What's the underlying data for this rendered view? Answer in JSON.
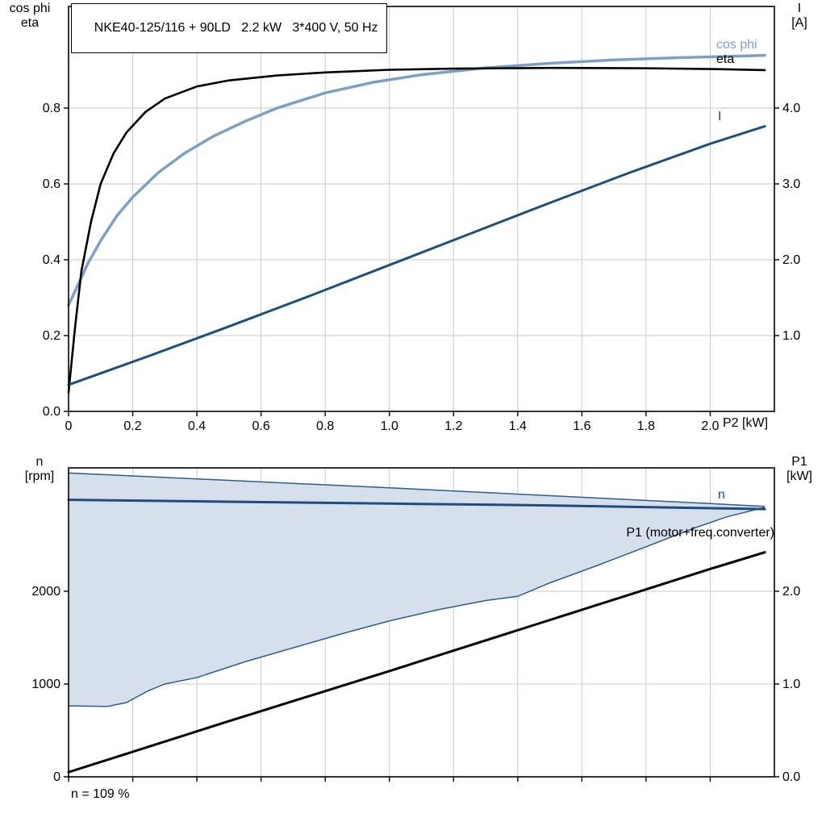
{
  "page": {
    "background": "#ffffff"
  },
  "colors": {
    "cos_phi": "#7d9ec6",
    "eta": "#000000",
    "current": "#1d4e7e",
    "speed": "#1d4e7e",
    "band_fill": "#d6e0ec",
    "band_edge": "#2e5d8c",
    "p1": "#000000",
    "grid": "#c9c9c9",
    "frame": "#000000"
  },
  "chart_data": [
    {
      "type": "line",
      "title": "NKE40-125/116 + 90LD   2.2 kW   3*400 V, 50 Hz",
      "xlabel": "P2 [kW]",
      "ylabel_left_lines": [
        "cos phi",
        "eta"
      ],
      "ylabel_right_lines": [
        "I",
        "[A]"
      ],
      "xlim": [
        0,
        2.2
      ],
      "ylim_left": [
        0,
        1.068
      ],
      "ylim_right": [
        0,
        5.34
      ],
      "grid": true,
      "legend_position": "curve-end-labels",
      "x_ticks": [
        0,
        0.2,
        0.4,
        0.6,
        0.8,
        1.0,
        1.2,
        1.4,
        1.6,
        1.8,
        2.0
      ],
      "x_tick_labels": [
        "0",
        "0.2",
        "0.4",
        "0.6",
        "0.8",
        "1.0",
        "1.2",
        "1.4",
        "1.6",
        "1.8",
        "2.0"
      ],
      "y_ticks_left": [
        0,
        0.2,
        0.4,
        0.6,
        0.8
      ],
      "y_tick_labels_left": [
        "0.0",
        "0.2",
        "0.4",
        "0.6",
        "0.8"
      ],
      "y_ticks_right": [
        1.0,
        2.0,
        3.0,
        4.0
      ],
      "y_tick_labels_right": [
        "1.0",
        "2.0",
        "3.0",
        "4.0"
      ],
      "series": [
        {
          "name": "cos phi",
          "axis": "left",
          "color": "#7d9ec6",
          "width": 3.5,
          "x": [
            0,
            0.03,
            0.06,
            0.1,
            0.15,
            0.2,
            0.28,
            0.36,
            0.45,
            0.55,
            0.65,
            0.8,
            0.95,
            1.1,
            1.3,
            1.5,
            1.7,
            1.9,
            2.05,
            2.17
          ],
          "y": [
            0.28,
            0.335,
            0.39,
            0.45,
            0.515,
            0.565,
            0.63,
            0.68,
            0.725,
            0.765,
            0.8,
            0.84,
            0.868,
            0.888,
            0.906,
            0.918,
            0.927,
            0.933,
            0.936,
            0.939
          ]
        },
        {
          "name": "eta",
          "axis": "left",
          "color": "#000000",
          "width": 2.6,
          "x": [
            0,
            0.02,
            0.04,
            0.07,
            0.1,
            0.14,
            0.18,
            0.24,
            0.3,
            0.4,
            0.5,
            0.65,
            0.8,
            1.0,
            1.2,
            1.5,
            1.8,
            2.0,
            2.17
          ],
          "y": [
            0.05,
            0.22,
            0.37,
            0.5,
            0.6,
            0.68,
            0.735,
            0.79,
            0.825,
            0.857,
            0.873,
            0.886,
            0.894,
            0.901,
            0.904,
            0.906,
            0.905,
            0.903,
            0.9
          ]
        },
        {
          "name": "I",
          "axis": "right",
          "color": "#1d4e7e",
          "width": 3,
          "x": [
            0,
            0.25,
            0.5,
            0.75,
            1.0,
            1.25,
            1.5,
            1.75,
            2.0,
            2.17
          ],
          "y": [
            0.35,
            0.73,
            1.12,
            1.52,
            1.93,
            2.34,
            2.75,
            3.15,
            3.53,
            3.76
          ]
        }
      ]
    },
    {
      "type": "line",
      "title": "",
      "xlabel": "",
      "ylabel_left_lines": [
        "n",
        "[rpm]"
      ],
      "ylabel_right_lines": [
        "P1",
        "[kW]"
      ],
      "xlim": [
        0,
        2.2
      ],
      "ylim_left": [
        0,
        3330
      ],
      "ylim_right": [
        0,
        3.33
      ],
      "grid": true,
      "footnote": "n = 109 %",
      "x_ticks": [
        0,
        0.2,
        0.4,
        0.6,
        0.8,
        1.0,
        1.2,
        1.4,
        1.6,
        1.8,
        2.0
      ],
      "x_tick_labels": null,
      "y_ticks_left": [
        0,
        1000,
        2000
      ],
      "y_tick_labels_left": [
        "0",
        "1000",
        "2000"
      ],
      "y_ticks_right": [
        0,
        1.0,
        2.0
      ],
      "y_tick_labels_right": [
        "0.0",
        "1.0",
        "2.0"
      ],
      "band": {
        "axis": "left",
        "fill": "#d6e0ec",
        "edge": "#2e5d8c",
        "upper": {
          "x": [
            0,
            0.5,
            1.0,
            1.5,
            2.0,
            2.17
          ],
          "y": [
            3275,
            3195,
            3115,
            3030,
            2945,
            2915
          ]
        },
        "lower": {
          "x": [
            0,
            0.12,
            0.18,
            0.25,
            0.3,
            0.4,
            0.55,
            0.7,
            0.85,
            1.0,
            1.15,
            1.3,
            1.4,
            1.5,
            1.65,
            1.8,
            1.95,
            2.05,
            2.17
          ],
          "y": [
            765,
            758,
            800,
            930,
            1000,
            1070,
            1240,
            1390,
            1540,
            1680,
            1800,
            1900,
            1945,
            2090,
            2280,
            2480,
            2680,
            2800,
            2905
          ]
        }
      },
      "series": [
        {
          "name": "n",
          "axis": "left",
          "color": "#1d4e7e",
          "width": 3,
          "x": [
            0,
            0.5,
            1.0,
            1.5,
            2.0,
            2.17
          ],
          "y": [
            2985,
            2965,
            2945,
            2925,
            2895,
            2885
          ]
        },
        {
          "name": "P1 (motor+freq.converter)",
          "axis": "right",
          "color": "#000000",
          "width": 3,
          "x": [
            0,
            0.5,
            1.0,
            1.5,
            2.0,
            2.17
          ],
          "y": [
            0.05,
            0.6,
            1.14,
            1.69,
            2.24,
            2.42
          ]
        }
      ]
    }
  ]
}
